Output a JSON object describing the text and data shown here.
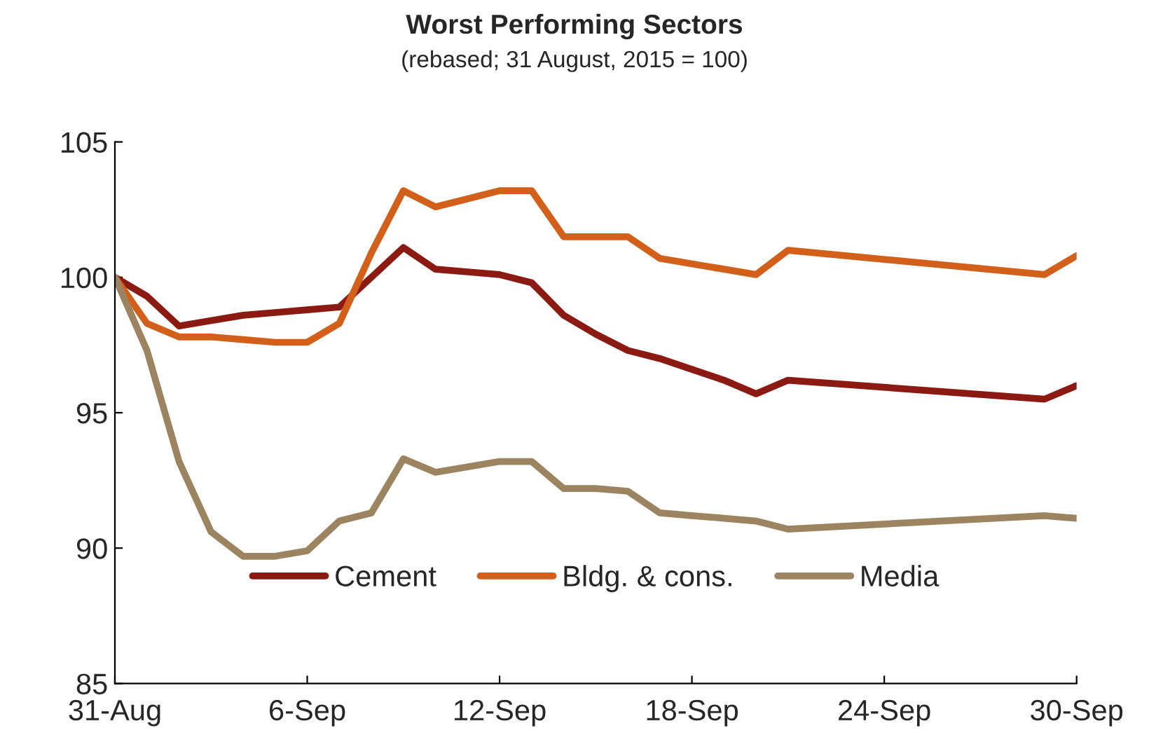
{
  "chart_data": {
    "type": "line",
    "title": "Worst Performing Sectors",
    "subtitle": "(rebased; 31 August, 2015 = 100)",
    "x": [
      "2015-08-31",
      "2015-09-01",
      "2015-09-02",
      "2015-09-03",
      "2015-09-04",
      "2015-09-05",
      "2015-09-06",
      "2015-09-07",
      "2015-09-08",
      "2015-09-09",
      "2015-09-10",
      "2015-09-11",
      "2015-09-12",
      "2015-09-13",
      "2015-09-14",
      "2015-09-15",
      "2015-09-16",
      "2015-09-17",
      "2015-09-18",
      "2015-09-19",
      "2015-09-20",
      "2015-09-21",
      "2015-09-29",
      "2015-09-30"
    ],
    "series": [
      {
        "name": "Cement",
        "color": "#8b1a12",
        "values": [
          100,
          99.3,
          98.2,
          98.4,
          98.6,
          98.7,
          98.8,
          98.9,
          100.0,
          101.1,
          100.3,
          100.2,
          100.1,
          99.8,
          98.6,
          97.9,
          97.3,
          97.0,
          96.6,
          96.2,
          95.7,
          96.2,
          95.5,
          96.0
        ]
      },
      {
        "name": "Bldg. & cons.",
        "color": "#d2601a",
        "values": [
          100,
          98.3,
          97.8,
          97.8,
          97.7,
          97.6,
          97.6,
          98.3,
          100.9,
          103.2,
          102.6,
          102.9,
          103.2,
          103.2,
          101.5,
          101.5,
          101.5,
          100.7,
          100.5,
          100.3,
          100.1,
          101.0,
          100.1,
          100.8
        ]
      },
      {
        "name": "Media",
        "color": "#9c8461",
        "values": [
          100,
          97.3,
          93.2,
          90.6,
          89.7,
          89.7,
          89.9,
          91.0,
          91.3,
          93.3,
          92.8,
          93.0,
          93.2,
          93.2,
          92.2,
          92.2,
          92.1,
          91.3,
          91.2,
          91.1,
          91.0,
          90.7,
          91.2,
          91.1
        ]
      }
    ],
    "xlim": [
      "2015-08-31",
      "2015-09-30"
    ],
    "xticks": [
      {
        "value": "2015-08-31",
        "label": "31-Aug"
      },
      {
        "value": "2015-09-06",
        "label": "6-Sep"
      },
      {
        "value": "2015-09-12",
        "label": "12-Sep"
      },
      {
        "value": "2015-09-18",
        "label": "18-Sep"
      },
      {
        "value": "2015-09-24",
        "label": "24-Sep"
      },
      {
        "value": "2015-09-30",
        "label": "30-Sep"
      }
    ],
    "ylim": [
      85,
      105
    ],
    "yticks": [
      85,
      90,
      95,
      100,
      105
    ],
    "grid": false,
    "legend": "bottom",
    "line_style": "solid",
    "marker": "none"
  }
}
